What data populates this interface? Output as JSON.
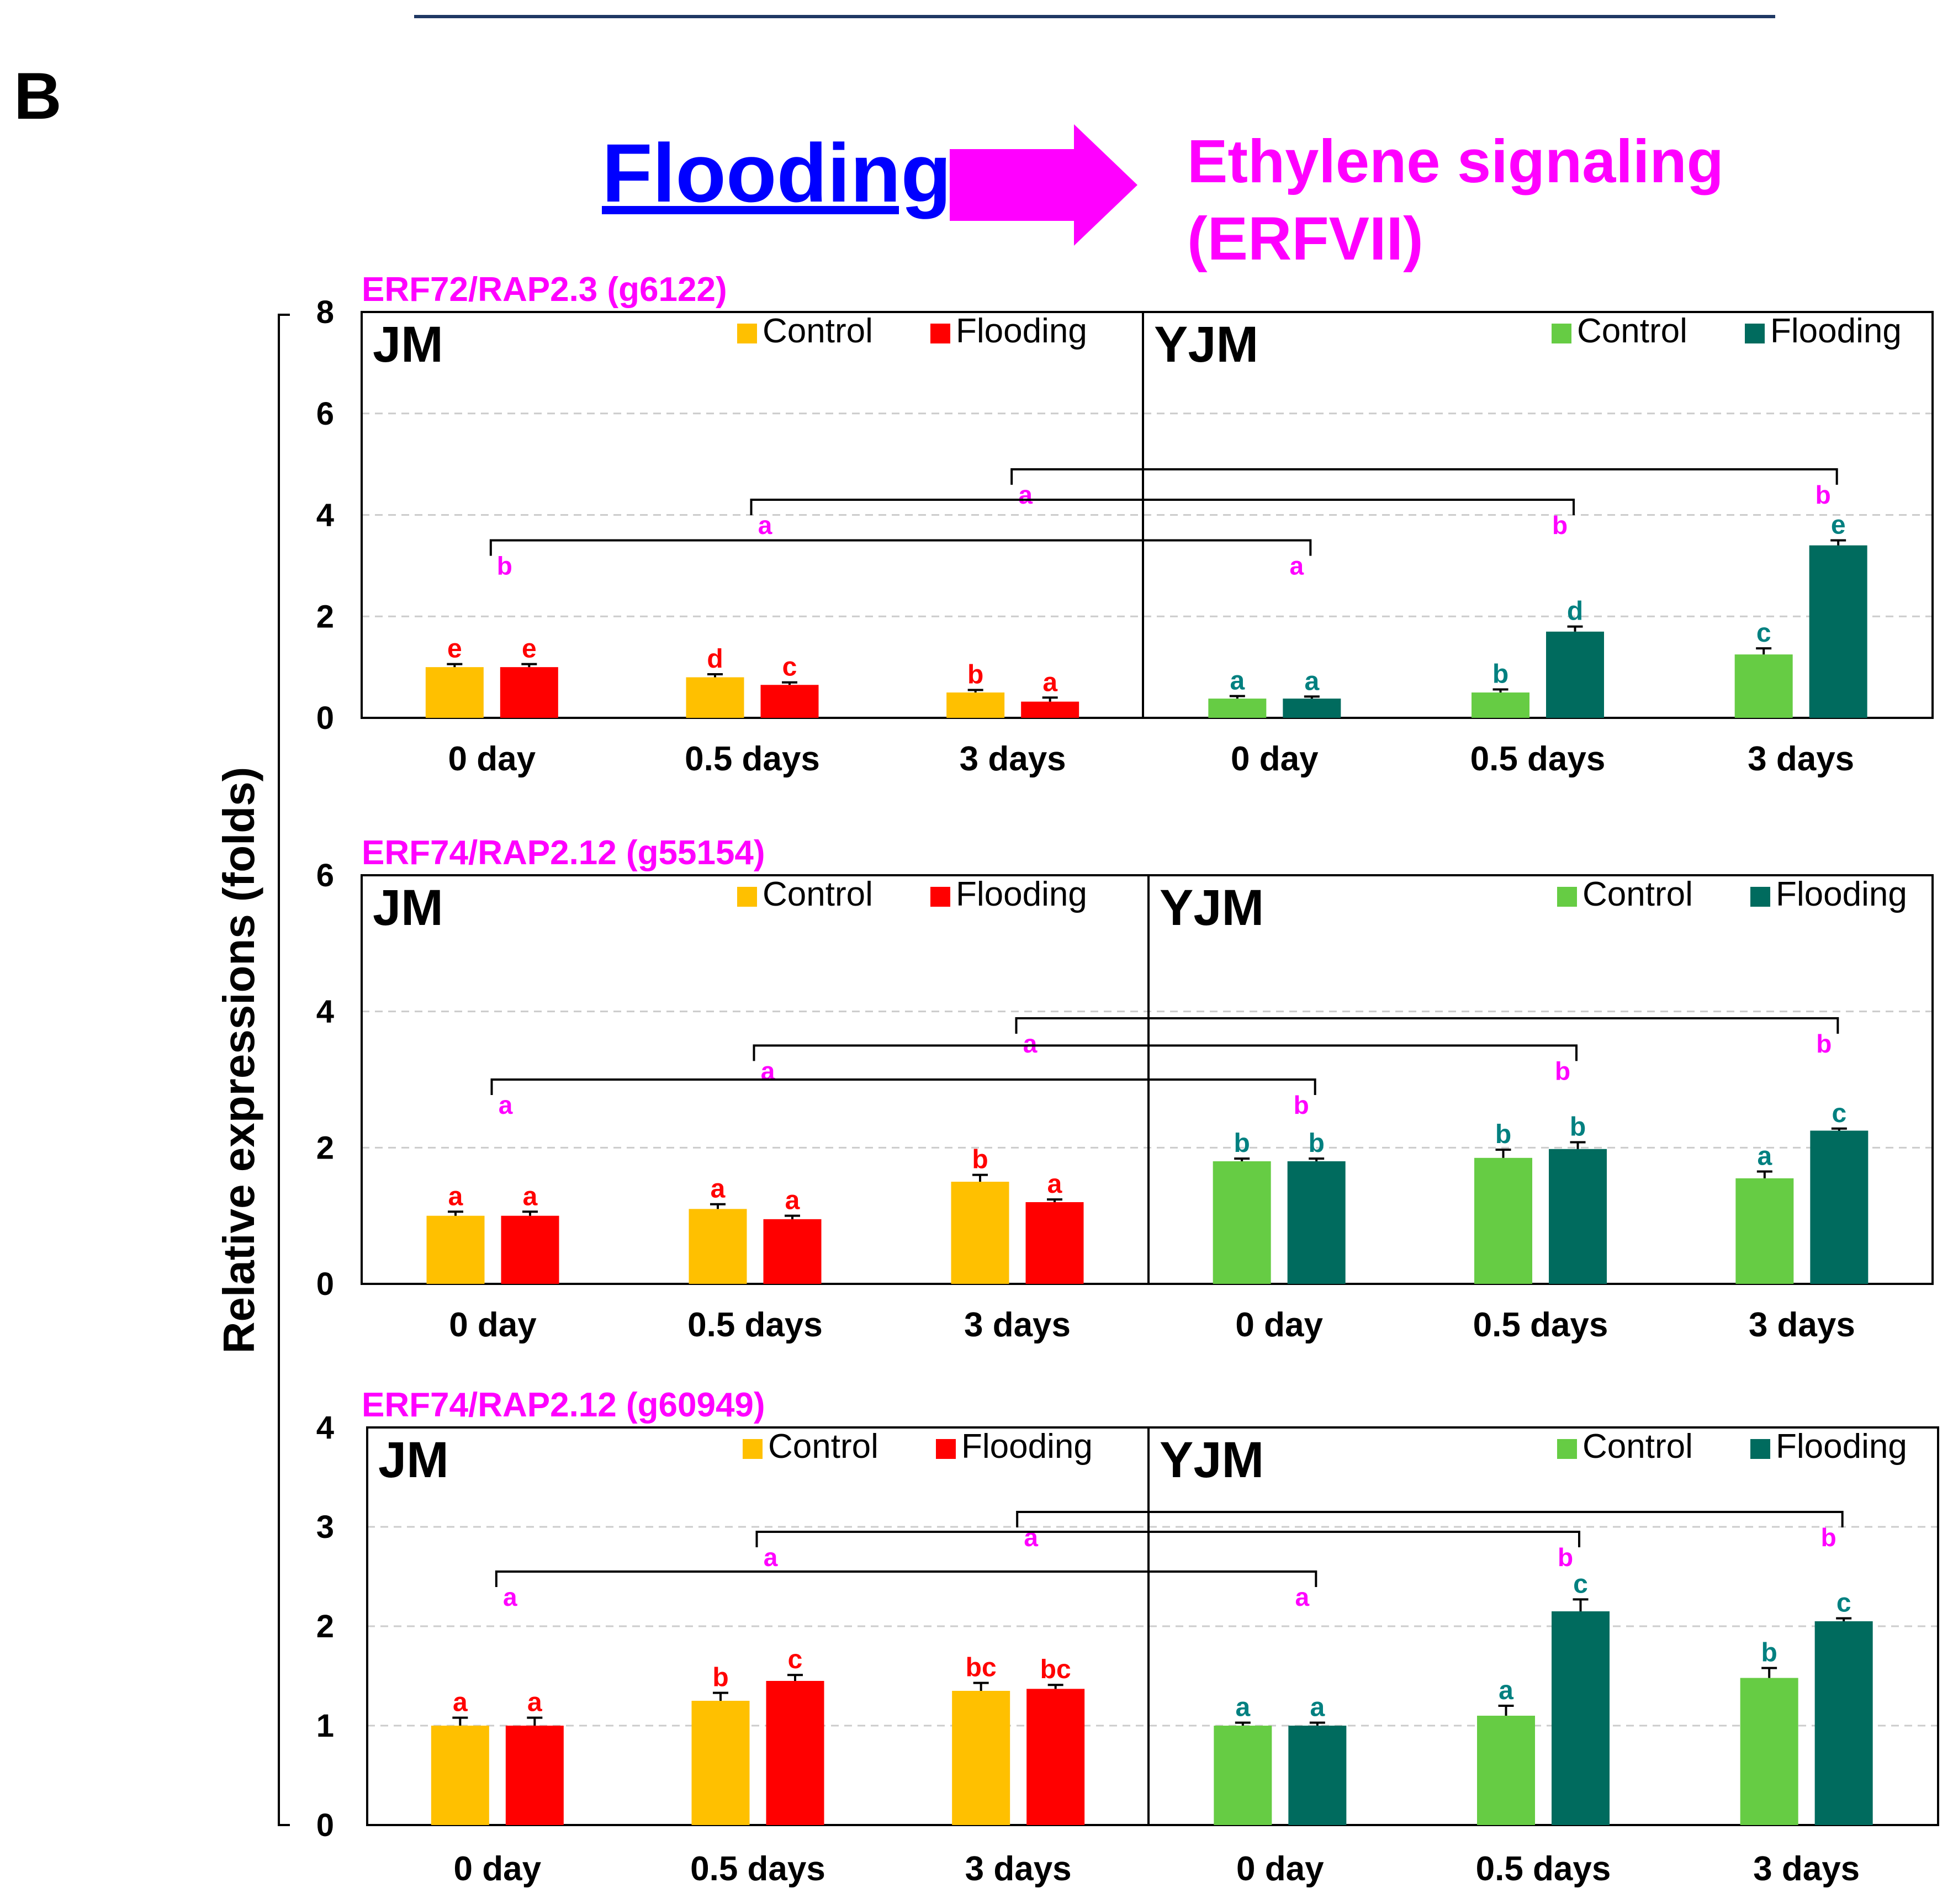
{
  "panel_label": "B",
  "header": {
    "cause": "Flooding",
    "effect_line1": "Ethylene signaling",
    "effect_line2": "(ERFVII)"
  },
  "y_axis_label": "Relative expressions (folds)",
  "colors": {
    "jm_control": "#FFC000",
    "jm_flooding": "#FF0000",
    "yjm_control": "#66CC44",
    "yjm_flooding": "#006B5E",
    "gene_title": "#FF00FF",
    "bracket_letter": "#FF00FF",
    "jm_letter": "#FF0000",
    "yjm_letter": "#008080",
    "flooding_text": "#0000FF",
    "arrow": "#FF00FF"
  },
  "chart_data": [
    {
      "type": "bar",
      "title": "ERF72/RAP2.3 (g6122)",
      "ylabel": "Relative expressions (folds)",
      "ylim": [
        0,
        8
      ],
      "yticks": [
        0,
        2,
        4,
        6,
        8
      ],
      "categories": [
        "0 day",
        "0.5 days",
        "3 days"
      ],
      "groups": [
        {
          "name": "JM",
          "legend": [
            "Control",
            "Flooding"
          ],
          "series": [
            {
              "name": "Control",
              "values": [
                1.0,
                0.8,
                0.5
              ],
              "errors": [
                0.06,
                0.06,
                0.05
              ],
              "letters": [
                "e",
                "d",
                "b"
              ]
            },
            {
              "name": "Flooding",
              "values": [
                1.0,
                0.65,
                0.32
              ],
              "errors": [
                0.06,
                0.05,
                0.08
              ],
              "letters": [
                "e",
                "c",
                "a"
              ]
            }
          ]
        },
        {
          "name": "YJM",
          "legend": [
            "Control",
            "Flooding"
          ],
          "series": [
            {
              "name": "Control",
              "values": [
                0.38,
                0.5,
                1.25
              ],
              "errors": [
                0.05,
                0.06,
                0.12
              ],
              "letters": [
                "a",
                "b",
                "c"
              ]
            },
            {
              "name": "Flooding",
              "values": [
                0.38,
                1.7,
                3.4
              ],
              "errors": [
                0.04,
                0.1,
                0.1
              ],
              "letters": [
                "a",
                "d",
                "e"
              ]
            }
          ]
        }
      ],
      "brackets": [
        {
          "level": 4.9,
          "from": "JM 3 days",
          "to": "YJM 3 days",
          "left_letter": "a",
          "right_letter": "b"
        },
        {
          "level": 4.3,
          "from": "JM 0.5 days",
          "to": "YJM 0.5 days",
          "left_letter": "a",
          "right_letter": "b"
        },
        {
          "level": 3.5,
          "from": "JM 0 day",
          "to": "YJM 0 day",
          "left_letter": "b",
          "right_letter": "a"
        }
      ]
    },
    {
      "type": "bar",
      "title": "ERF74/RAP2.12 (g55154)",
      "ylabel": "Relative expressions (folds)",
      "ylim": [
        0,
        6
      ],
      "yticks": [
        0,
        2,
        4,
        6
      ],
      "categories": [
        "0 day",
        "0.5 days",
        "3 days"
      ],
      "groups": [
        {
          "name": "JM",
          "legend": [
            "Control",
            "Flooding"
          ],
          "series": [
            {
              "name": "Control",
              "values": [
                1.0,
                1.1,
                1.5
              ],
              "errors": [
                0.06,
                0.07,
                0.1
              ],
              "letters": [
                "a",
                "a",
                "b"
              ]
            },
            {
              "name": "Flooding",
              "values": [
                1.0,
                0.95,
                1.2
              ],
              "errors": [
                0.06,
                0.05,
                0.04
              ],
              "letters": [
                "a",
                "a",
                "a"
              ]
            }
          ]
        },
        {
          "name": "YJM",
          "legend": [
            "Control",
            "Flooding"
          ],
          "series": [
            {
              "name": "Control",
              "values": [
                1.8,
                1.85,
                1.55
              ],
              "errors": [
                0.04,
                0.12,
                0.1
              ],
              "letters": [
                "b",
                "b",
                "a"
              ]
            },
            {
              "name": "Flooding",
              "values": [
                1.8,
                1.98,
                2.25
              ],
              "errors": [
                0.04,
                0.1,
                0.03
              ],
              "letters": [
                "b",
                "b",
                "c"
              ]
            }
          ]
        }
      ],
      "brackets": [
        {
          "level": 3.9,
          "from": "JM 3 days",
          "to": "YJM 3 days",
          "left_letter": "a",
          "right_letter": "b"
        },
        {
          "level": 3.5,
          "from": "JM 0.5 days",
          "to": "YJM 0.5 days",
          "left_letter": "a",
          "right_letter": "b"
        },
        {
          "level": 3.0,
          "from": "JM 0 day",
          "to": "YJM 0 day",
          "left_letter": "a",
          "right_letter": "b"
        }
      ]
    },
    {
      "type": "bar",
      "title": "ERF74/RAP2.12 (g60949)",
      "ylabel": "Relative expressions (folds)",
      "ylim": [
        0,
        4
      ],
      "yticks": [
        0,
        1,
        2,
        3,
        4
      ],
      "categories": [
        "0 day",
        "0.5 days",
        "3 days"
      ],
      "groups": [
        {
          "name": "JM",
          "legend": [
            "Control",
            "Flooding"
          ],
          "series": [
            {
              "name": "Control",
              "values": [
                1.0,
                1.25,
                1.35
              ],
              "errors": [
                0.08,
                0.08,
                0.08
              ],
              "letters": [
                "a",
                "b",
                "bc"
              ]
            },
            {
              "name": "Flooding",
              "values": [
                1.0,
                1.45,
                1.37
              ],
              "errors": [
                0.08,
                0.06,
                0.04
              ],
              "letters": [
                "a",
                "c",
                "bc"
              ]
            }
          ]
        },
        {
          "name": "YJM",
          "legend": [
            "Control",
            "Flooding"
          ],
          "series": [
            {
              "name": "Control",
              "values": [
                1.0,
                1.1,
                1.48
              ],
              "errors": [
                0.03,
                0.1,
                0.1
              ],
              "letters": [
                "a",
                "a",
                "b"
              ]
            },
            {
              "name": "Flooding",
              "values": [
                1.0,
                2.15,
                2.05
              ],
              "errors": [
                0.03,
                0.12,
                0.03
              ],
              "letters": [
                "a",
                "c",
                "c"
              ]
            }
          ]
        }
      ],
      "brackets": [
        {
          "level": 3.15,
          "from": "JM 3 days",
          "to": "YJM 3 days",
          "left_letter": "a",
          "right_letter": "b"
        },
        {
          "level": 2.95,
          "from": "JM 0.5 days",
          "to": "YJM 0.5 days",
          "left_letter": "a",
          "right_letter": "b"
        },
        {
          "level": 2.55,
          "from": "JM 0 day",
          "to": "YJM 0 day",
          "left_letter": "a",
          "right_letter": "a"
        }
      ]
    }
  ]
}
